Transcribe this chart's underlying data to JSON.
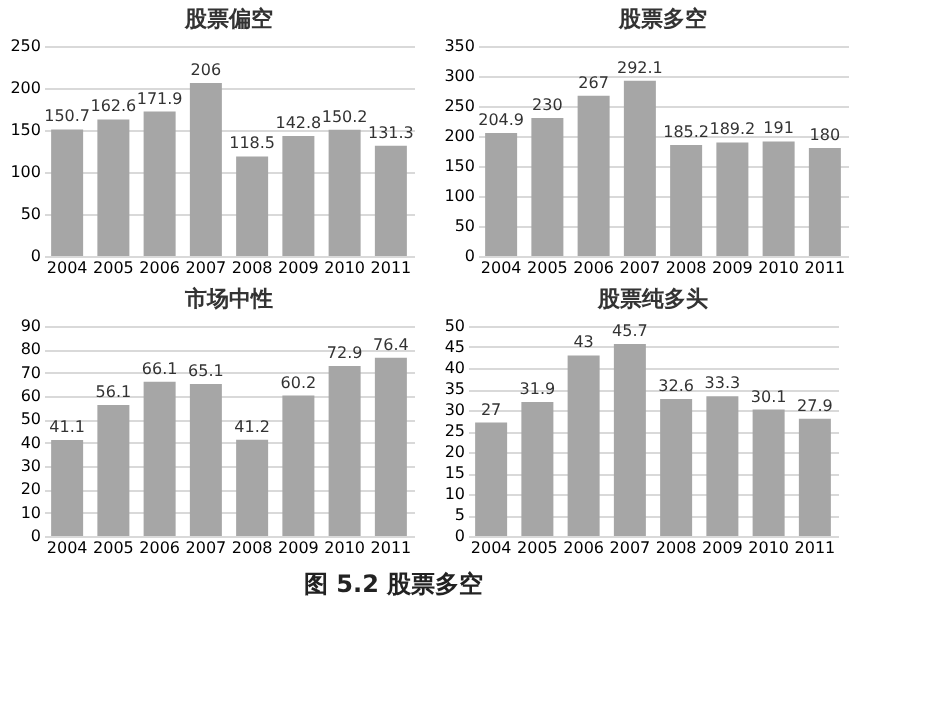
{
  "chart_data": [
    {
      "type": "bar",
      "title": "股票偏空",
      "categories": [
        "2004",
        "2005",
        "2006",
        "2007",
        "2008",
        "2009",
        "2010",
        "2011"
      ],
      "values": [
        150.7,
        162.6,
        171.9,
        206,
        118.5,
        142.8,
        150.2,
        131.3
      ],
      "color": "#a6a6a6",
      "ylim": [
        0,
        250
      ],
      "yticks": [
        0,
        50,
        100,
        150,
        200,
        250
      ],
      "grid": "y",
      "data_labels": true,
      "annotations": [
        "图 5.2 股票多空"
      ]
    },
    {
      "type": "bar",
      "title": "股票多空",
      "categories": [
        "2004",
        "2005",
        "2006",
        "2007",
        "2008",
        "2009",
        "2010",
        "2011"
      ],
      "values": [
        204.9,
        230,
        267,
        292.1,
        185.2,
        189.2,
        191,
        180
      ],
      "color": "#a6a6a6",
      "ylim": [
        0,
        350
      ],
      "yticks": [
        0,
        50,
        100,
        150,
        200,
        250,
        300,
        350
      ],
      "grid": "y",
      "data_labels": true
    },
    {
      "type": "bar",
      "title": "市场中性",
      "categories": [
        "2004",
        "2005",
        "2006",
        "2007",
        "2008",
        "2009",
        "2010",
        "2011"
      ],
      "values": [
        41.1,
        56.1,
        66.1,
        65.1,
        41.2,
        60.2,
        72.9,
        76.4
      ],
      "color": "#a6a6a6",
      "ylim": [
        0,
        90
      ],
      "yticks": [
        0,
        10,
        20,
        30,
        40,
        50,
        60,
        70,
        80,
        90
      ],
      "grid": "y",
      "data_labels": true
    },
    {
      "type": "bar",
      "title": "股票纯多头",
      "categories": [
        "2004",
        "2005",
        "2006",
        "2007",
        "2008",
        "2009",
        "2010",
        "2011"
      ],
      "values": [
        27,
        31.9,
        43,
        45.7,
        32.6,
        33.3,
        30.1,
        27.9
      ],
      "color": "#a6a6a6",
      "ylim": [
        0,
        50
      ],
      "yticks": [
        0,
        5,
        10,
        15,
        20,
        25,
        30,
        35,
        40,
        45,
        50
      ],
      "grid": "y",
      "data_labels": true
    }
  ]
}
